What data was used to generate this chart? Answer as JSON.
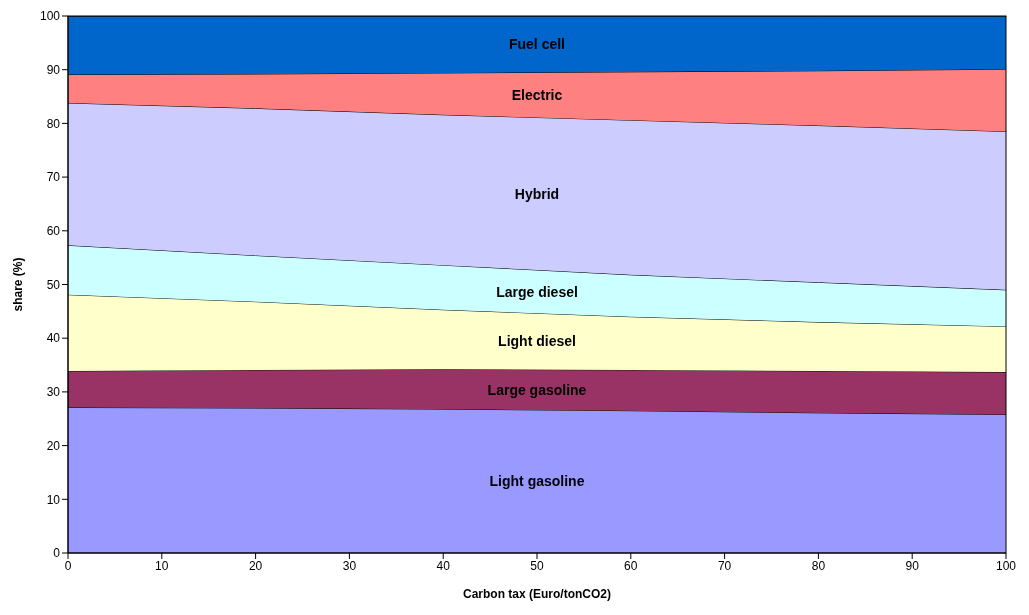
{
  "chart_data": {
    "type": "area",
    "stacked": true,
    "xlabel": "Carbon tax (Euro/tonCO2)",
    "ylabel": "share (%)",
    "x": [
      0,
      20,
      40,
      60,
      80,
      100
    ],
    "xlim": [
      0,
      100
    ],
    "xticks": [
      0,
      10,
      20,
      30,
      40,
      50,
      60,
      70,
      80,
      90,
      100
    ],
    "ylim": [
      0,
      100
    ],
    "yticks": [
      0,
      10,
      20,
      30,
      40,
      50,
      60,
      70,
      80,
      90,
      100
    ],
    "grid": false,
    "legend": false,
    "series": [
      {
        "name": "Light gasoline",
        "color": "#9999ff",
        "values": [
          27.1,
          27.0,
          26.8,
          26.5,
          26.1,
          25.8
        ]
      },
      {
        "name": "Large gasoline",
        "color": "#993366",
        "values": [
          6.8,
          7.1,
          7.4,
          7.6,
          7.8,
          7.9
        ]
      },
      {
        "name": "Light diesel",
        "color": "#ffffcc",
        "values": [
          14.2,
          12.7,
          11.1,
          9.9,
          9.1,
          8.5
        ]
      },
      {
        "name": "Large diesel",
        "color": "#ccffff",
        "values": [
          9.2,
          8.6,
          8.3,
          7.8,
          7.4,
          6.8
        ]
      },
      {
        "name": "Hybrid",
        "color": "#ccccff",
        "values": [
          26.5,
          27.4,
          28.0,
          28.8,
          29.2,
          29.5
        ]
      },
      {
        "name": "Electric",
        "color": "#ff8080",
        "values": [
          5.3,
          6.4,
          7.8,
          9.0,
          10.2,
          11.6
        ]
      },
      {
        "name": "Fuel cell",
        "color": "#0066cc",
        "values": [
          10.9,
          10.8,
          10.6,
          10.4,
          10.2,
          9.9
        ]
      }
    ]
  }
}
